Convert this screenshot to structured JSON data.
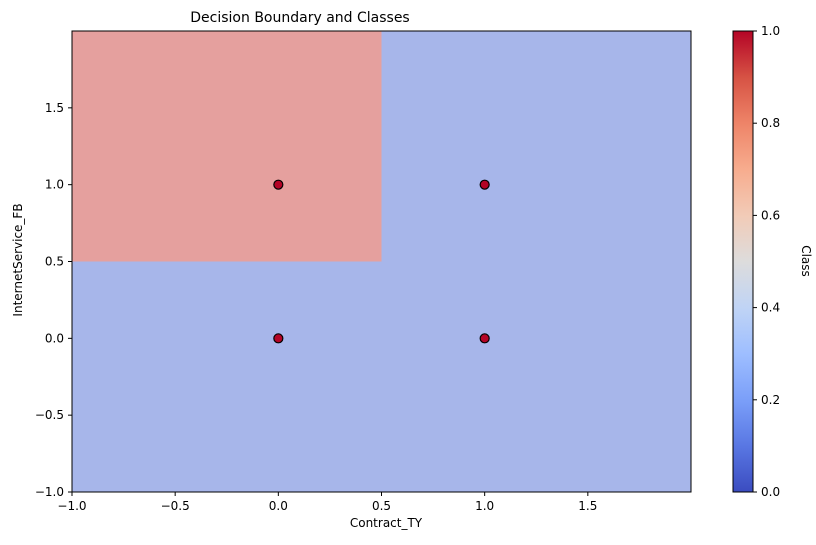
{
  "chart_data": {
    "type": "scatter",
    "title": "Decision Boundary and Classes",
    "xlabel": "Contract_TY",
    "ylabel": "InternetService_FB",
    "xlim": [
      -1.0,
      2.0
    ],
    "ylim": [
      -1.0,
      2.0
    ],
    "x_ticks": [
      -1.0,
      -0.5,
      0.0,
      0.5,
      1.0,
      1.5
    ],
    "x_tick_labels": [
      "−1.0",
      "−0.5",
      "0.0",
      "0.5",
      "1.0",
      "1.5"
    ],
    "y_ticks": [
      -1.0,
      -0.5,
      0.0,
      0.5,
      1.0,
      1.5
    ],
    "y_tick_labels": [
      "−1.0",
      "−0.5",
      "0.0",
      "0.5",
      "1.0",
      "1.5"
    ],
    "grid": false,
    "regions": [
      {
        "class": 0,
        "x_range": [
          -1.0,
          2.0
        ],
        "y_range": [
          -1.0,
          2.0
        ],
        "color": "#a7b6ea"
      },
      {
        "class": 1,
        "x_range": [
          -1.0,
          0.5
        ],
        "y_range": [
          0.5,
          2.0
        ],
        "color": "#e5a09e"
      }
    ],
    "points": [
      {
        "x": 0,
        "y": 1,
        "class": 1
      },
      {
        "x": 1,
        "y": 1,
        "class": 1
      },
      {
        "x": 0,
        "y": 0,
        "class": 1
      },
      {
        "x": 1,
        "y": 0,
        "class": 1
      }
    ],
    "point_color": "#b40426",
    "colorbar": {
      "label": "Class",
      "range": [
        0.0,
        1.0
      ],
      "ticks": [
        0.0,
        0.2,
        0.4,
        0.6,
        0.8,
        1.0
      ],
      "tick_labels": [
        "0.0",
        "0.2",
        "0.4",
        "0.6",
        "0.8",
        "1.0"
      ],
      "colormap": "coolwarm",
      "stops": [
        "#3b4cc0",
        "#5977e3",
        "#7b9ff9",
        "#9ebeff",
        "#c0d4f5",
        "#dddcdc",
        "#f2cbb7",
        "#f7ac8e",
        "#ee8468",
        "#d65244",
        "#b40426"
      ]
    }
  }
}
